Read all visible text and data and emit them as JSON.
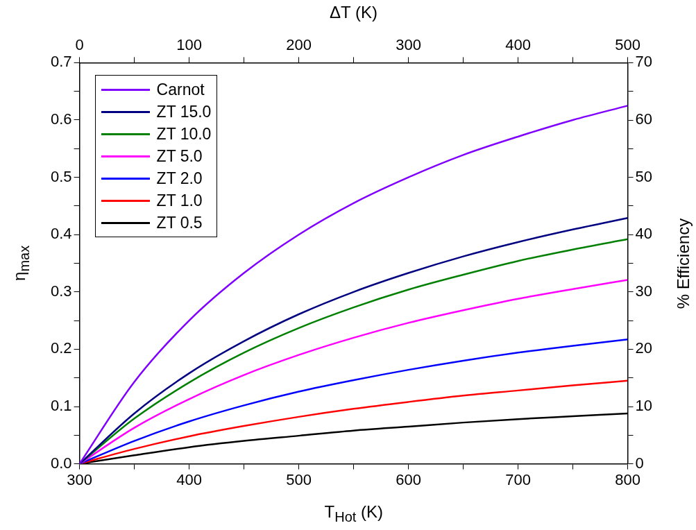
{
  "chart_data": {
    "type": "line",
    "xlabel": "T$_{Hot}$ (K)",
    "ylabel": "η$_{max}$",
    "x2label": "ΔT (K)",
    "y2label": "% Efficiency",
    "x": [
      300,
      350,
      400,
      450,
      500,
      550,
      600,
      650,
      700,
      750,
      800
    ],
    "series": [
      {
        "name": "Carnot",
        "color": "#8000ff",
        "values": [
          0,
          0.143,
          0.25,
          0.333,
          0.4,
          0.455,
          0.5,
          0.539,
          0.571,
          0.6,
          0.625
        ]
      },
      {
        "name": "ZT 15.0",
        "color": "#000080",
        "values": [
          0,
          0.088,
          0.158,
          0.214,
          0.261,
          0.3,
          0.333,
          0.362,
          0.387,
          0.409,
          0.429
        ]
      },
      {
        "name": "ZT 10.0",
        "color": "#008000",
        "values": [
          0,
          0.079,
          0.142,
          0.194,
          0.237,
          0.273,
          0.304,
          0.33,
          0.354,
          0.374,
          0.392
        ]
      },
      {
        "name": "ZT 5.0",
        "color": "#ff00ff",
        "values": [
          0,
          0.063,
          0.113,
          0.155,
          0.19,
          0.22,
          0.246,
          0.268,
          0.288,
          0.305,
          0.321
        ]
      },
      {
        "name": "ZT 2.0",
        "color": "#0000ff",
        "values": [
          0,
          0.04,
          0.074,
          0.102,
          0.126,
          0.146,
          0.164,
          0.18,
          0.194,
          0.206,
          0.217
        ]
      },
      {
        "name": "ZT 1.0",
        "color": "#ff0000",
        "values": [
          0,
          0.026,
          0.048,
          0.066,
          0.082,
          0.096,
          0.108,
          0.119,
          0.128,
          0.137,
          0.145
        ]
      },
      {
        "name": "ZT 0.5",
        "color": "#000000",
        "values": [
          0,
          0.015,
          0.029,
          0.04,
          0.049,
          0.058,
          0.065,
          0.072,
          0.078,
          0.083,
          0.088
        ]
      }
    ],
    "xlim": [
      300,
      800
    ],
    "xticks": [
      300,
      {
        "value": 350,
        "label": null
      },
      400,
      {
        "value": 450,
        "label": null
      },
      500,
      {
        "value": 550,
        "label": null
      },
      600,
      {
        "value": 650,
        "label": null
      },
      700,
      {
        "value": 750,
        "label": null
      },
      800
    ],
    "x2lim": [
      0,
      500
    ],
    "x2ticks": [
      0,
      {
        "value": 50,
        "label": null
      },
      100,
      {
        "value": 150,
        "label": null
      },
      200,
      {
        "value": 250,
        "label": null
      },
      300,
      {
        "value": 350,
        "label": null
      },
      400,
      {
        "value": 450,
        "label": null
      },
      500
    ],
    "ylim": [
      0,
      0.7
    ],
    "yticks": [
      {
        "value": 0,
        "label": "0.0"
      },
      {
        "value": 0.05,
        "label": null
      },
      0.1,
      {
        "value": 0.15,
        "label": null
      },
      0.2,
      {
        "value": 0.25,
        "label": null
      },
      0.3,
      {
        "value": 0.35,
        "label": null
      },
      0.4,
      {
        "value": 0.45,
        "label": null
      },
      0.5,
      {
        "value": 0.55,
        "label": null
      },
      0.6,
      {
        "value": 0.65,
        "label": null
      },
      0.7
    ],
    "y2lim": [
      0,
      70
    ],
    "y2ticks": [
      0,
      {
        "value": 5,
        "label": null
      },
      10,
      {
        "value": 15,
        "label": null
      },
      20,
      {
        "value": 25,
        "label": null
      },
      30,
      {
        "value": 35,
        "label": null
      },
      40,
      {
        "value": 45,
        "label": null
      },
      50,
      {
        "value": 55,
        "label": null
      },
      60,
      {
        "value": 65,
        "label": null
      },
      70
    ],
    "grid": false,
    "legend": "top left",
    "marker": "none",
    "line_style": "solid"
  }
}
